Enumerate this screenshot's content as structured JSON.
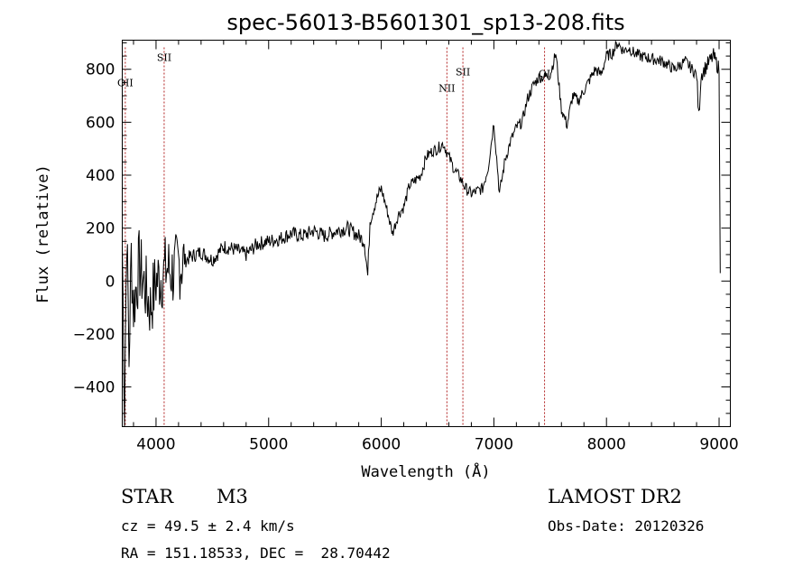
{
  "chart_data": {
    "type": "line",
    "title": "spec-56013-B5601301_sp13-208.fits",
    "xlabel": "Wavelength (Å)",
    "ylabel": "Flux (relative)",
    "xlim": [
      3700,
      9100
    ],
    "ylim": [
      -550,
      910
    ],
    "xticks": [
      4000,
      5000,
      6000,
      7000,
      8000,
      9000
    ],
    "yticks": [
      -400,
      -200,
      0,
      200,
      400,
      600,
      800
    ],
    "grid": false,
    "series": [
      {
        "x": [
          3700,
          3720,
          3740,
          3760,
          3780,
          3800,
          3850,
          3900,
          3950,
          4000,
          4050,
          4100,
          4150,
          4200,
          4300,
          4400,
          4500,
          4600,
          4700,
          4800,
          4900,
          5000,
          5100,
          5200,
          5300,
          5400,
          5500,
          5600,
          5700,
          5800,
          5850,
          5880,
          5900,
          5950,
          6000,
          6050,
          6100,
          6150,
          6200,
          6250,
          6300,
          6350,
          6400,
          6450,
          6500,
          6550,
          6600,
          6650,
          6700,
          6750,
          6800,
          6850,
          6900,
          6950,
          7000,
          7050,
          7100,
          7150,
          7200,
          7250,
          7300,
          7350,
          7400,
          7450,
          7500,
          7550,
          7600,
          7650,
          7700,
          7750,
          7800,
          7850,
          7900,
          7950,
          8000,
          8050,
          8100,
          8150,
          8200,
          8250,
          8300,
          8400,
          8500,
          8600,
          8700,
          8800,
          8820,
          8840,
          8900,
          8950,
          9000,
          9010
        ],
        "y": [
          150,
          -480,
          200,
          -300,
          100,
          -100,
          60,
          -20,
          -100,
          0,
          20,
          50,
          30,
          60,
          90,
          110,
          80,
          130,
          120,
          100,
          140,
          150,
          160,
          180,
          170,
          190,
          170,
          190,
          200,
          170,
          150,
          20,
          230,
          300,
          350,
          270,
          180,
          250,
          280,
          360,
          380,
          400,
          470,
          490,
          500,
          520,
          470,
          420,
          390,
          350,
          330,
          340,
          350,
          430,
          600,
          330,
          460,
          530,
          580,
          600,
          690,
          740,
          770,
          770,
          780,
          860,
          650,
          590,
          700,
          680,
          720,
          760,
          800,
          780,
          850,
          860,
          900,
          870,
          880,
          860,
          850,
          840,
          830,
          800,
          830,
          780,
          620,
          780,
          820,
          850,
          800,
          30
        ]
      }
    ],
    "lines": [
      {
        "label": "OII",
        "x": 3727
      },
      {
        "label": "SII",
        "x": 4072
      },
      {
        "label": "NII",
        "x": 6583
      },
      {
        "label": "SII",
        "x": 6725
      },
      {
        "label": "OI",
        "x": 7450
      }
    ]
  },
  "info": {
    "obj_type": "STAR",
    "subclass": "M3",
    "survey": "LAMOST DR2",
    "cz": "cz = 49.5 ± 2.4 km/s",
    "obs_date": "Obs-Date: 20120326",
    "coords": "RA = 151.18533, DEC =  28.70442"
  },
  "colors": {
    "spectrum": "#000000",
    "line_marker": "#b22222"
  }
}
